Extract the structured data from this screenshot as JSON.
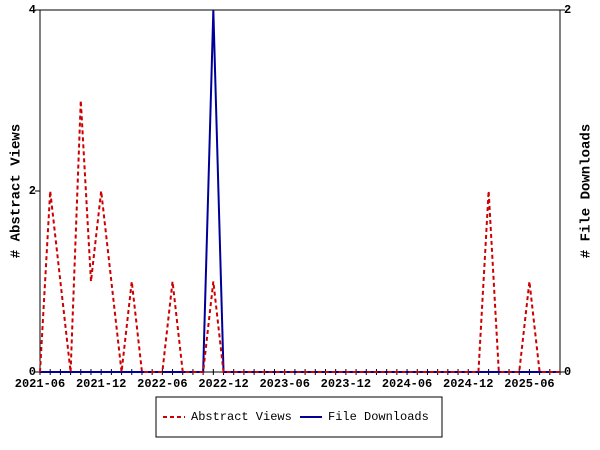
{
  "chart_data": {
    "type": "line",
    "categories": [
      "2021-06",
      null,
      null,
      null,
      null,
      null,
      "2021-12",
      null,
      null,
      null,
      null,
      null,
      "2022-06",
      null,
      null,
      null,
      null,
      null,
      "2022-12",
      null,
      null,
      null,
      null,
      null,
      "2023-06",
      null,
      null,
      null,
      null,
      null,
      "2023-12",
      null,
      null,
      null,
      null,
      null,
      "2024-06",
      null,
      null,
      null,
      null,
      null,
      "2024-12",
      null,
      null,
      null,
      null,
      null,
      "2025-06",
      null,
      null,
      null
    ],
    "series": [
      {
        "name": "Abstract Views",
        "color": "#cc0000",
        "dash": true,
        "values": [
          0,
          2,
          1,
          0,
          3,
          1,
          2,
          1,
          0,
          1,
          0,
          0,
          0,
          1,
          0,
          0,
          0,
          1,
          0,
          0,
          0,
          0,
          0,
          0,
          0,
          0,
          0,
          0,
          0,
          0,
          0,
          0,
          0,
          0,
          0,
          0,
          0,
          0,
          0,
          0,
          0,
          0,
          0,
          0,
          2,
          0,
          0,
          0,
          1,
          0,
          0,
          0
        ]
      },
      {
        "name": "File Downloads",
        "color": "#000099",
        "axis": "y2",
        "values": [
          0,
          0,
          0,
          0,
          0,
          0,
          0,
          0,
          0,
          0,
          0,
          0,
          0,
          0,
          0,
          0,
          0,
          2,
          0,
          0,
          0,
          0,
          0,
          0,
          0,
          0,
          0,
          0,
          0,
          0,
          0,
          0,
          0,
          0,
          0,
          0,
          0,
          0,
          0,
          0,
          0,
          0,
          0,
          0,
          0,
          0,
          0,
          0,
          0,
          0,
          0,
          0
        ]
      }
    ],
    "ylabel": "# Abstract Views",
    "y2label": "# File Downloads",
    "ylim": [
      0,
      4
    ],
    "yticks": [
      0,
      2,
      4
    ],
    "y2lim": [
      0,
      2
    ],
    "y2ticks": [
      0,
      2
    ]
  }
}
